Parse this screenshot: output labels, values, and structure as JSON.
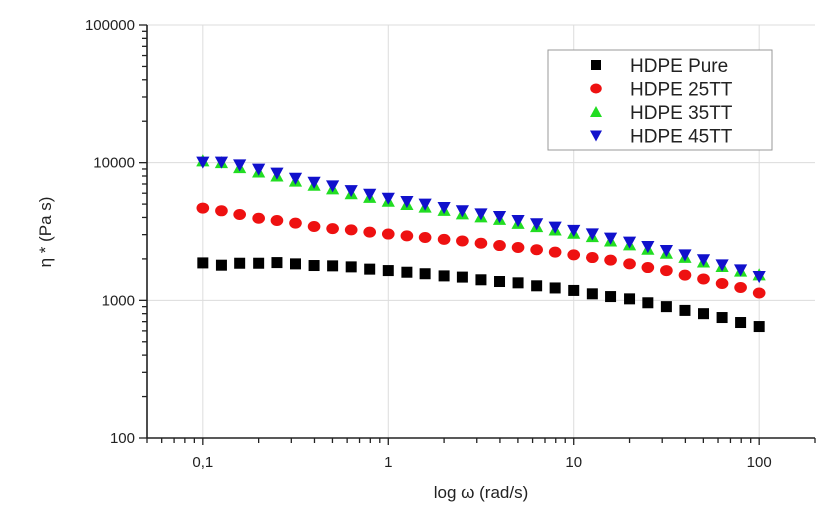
{
  "chart_data": {
    "type": "scatter",
    "title": "",
    "xlabel": "log ω (rad/s)",
    "ylabel": "η * (Pa s)",
    "xscale": "log",
    "yscale": "log",
    "xlim": [
      0.05,
      200
    ],
    "ylim": [
      100,
      100000
    ],
    "x_ticks": [
      0.1,
      1,
      10,
      100
    ],
    "x_tick_labels": [
      "0,1",
      "1",
      "10",
      "100"
    ],
    "y_ticks": [
      100,
      1000,
      10000,
      100000
    ],
    "y_tick_labels": [
      "100",
      "1000",
      "10000",
      "100000"
    ],
    "grid": true,
    "legend_position": "top-right",
    "x": [
      0.1,
      0.126,
      0.158,
      0.2,
      0.251,
      0.316,
      0.398,
      0.501,
      0.631,
      0.794,
      1,
      1.26,
      1.58,
      2,
      2.51,
      3.16,
      3.98,
      5.01,
      6.31,
      7.94,
      10,
      12.6,
      15.8,
      20,
      25.1,
      31.6,
      39.8,
      50.1,
      63.1,
      79.4,
      100
    ],
    "series": [
      {
        "name": "HDPE Pure",
        "marker": "square",
        "color": "#000000",
        "values": [
          1870,
          1800,
          1860,
          1860,
          1880,
          1840,
          1790,
          1780,
          1750,
          1685,
          1645,
          1600,
          1560,
          1505,
          1475,
          1410,
          1370,
          1340,
          1275,
          1230,
          1180,
          1115,
          1065,
          1025,
          960,
          900,
          845,
          800,
          750,
          690,
          645
        ]
      },
      {
        "name": "HDPE 25TT",
        "marker": "circle",
        "color": "#ee1111",
        "values": [
          4680,
          4470,
          4200,
          3950,
          3800,
          3640,
          3440,
          3320,
          3250,
          3130,
          3030,
          2940,
          2860,
          2770,
          2700,
          2600,
          2500,
          2420,
          2330,
          2240,
          2140,
          2045,
          1960,
          1840,
          1730,
          1645,
          1525,
          1430,
          1325,
          1240,
          1130
        ]
      },
      {
        "name": "HDPE 35TT",
        "marker": "triangle-up",
        "color": "#22dd22",
        "values": [
          10300,
          10000,
          9200,
          8550,
          8000,
          7350,
          6850,
          6450,
          5950,
          5600,
          5250,
          4970,
          4750,
          4500,
          4250,
          4040,
          3870,
          3620,
          3430,
          3240,
          3070,
          2900,
          2700,
          2530,
          2350,
          2200,
          2050,
          1900,
          1760,
          1630,
          1530
        ]
      },
      {
        "name": "HDPE 45TT",
        "marker": "triangle-down",
        "color": "#1111cc",
        "values": [
          10100,
          10100,
          9640,
          8970,
          8400,
          7710,
          7210,
          6790,
          6270,
          5900,
          5520,
          5220,
          5000,
          4720,
          4470,
          4250,
          4060,
          3800,
          3600,
          3400,
          3220,
          3040,
          2830,
          2650,
          2460,
          2300,
          2140,
          1970,
          1810,
          1665,
          1490
        ]
      }
    ]
  }
}
